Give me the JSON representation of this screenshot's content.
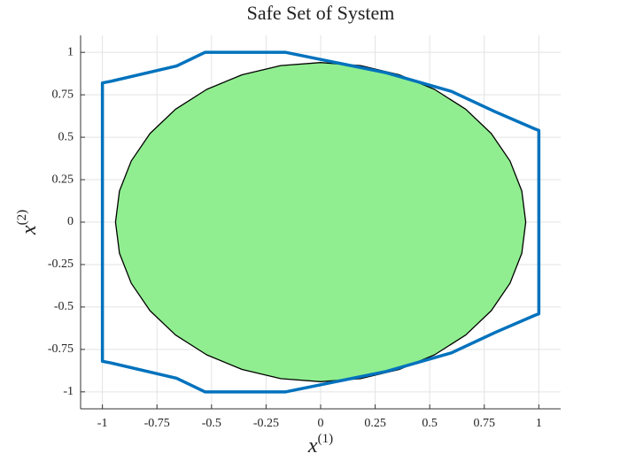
{
  "chart_data": {
    "type": "line",
    "title": "Safe Set of System",
    "xlabel": {
      "text": "x",
      "superscript": "(1)"
    },
    "ylabel": {
      "text": "x",
      "superscript": "(2)"
    },
    "xlim": [
      -1.1,
      1.1
    ],
    "ylim": [
      -1.1,
      1.1
    ],
    "xticks": [
      -1,
      -0.75,
      -0.5,
      -0.25,
      0,
      0.25,
      0.5,
      0.75,
      1
    ],
    "yticks": [
      -1,
      -0.75,
      -0.5,
      -0.25,
      0,
      0.25,
      0.5,
      0.75,
      1
    ],
    "grid": true,
    "series": [
      {
        "color": "#90ee90",
        "edge_color": "#000000",
        "filled": true,
        "x": [
          0.94,
          0.922,
          0.868,
          0.782,
          0.665,
          0.522,
          0.36,
          0.183,
          0,
          -0.183,
          -0.36,
          -0.522,
          -0.665,
          -0.782,
          -0.868,
          -0.922,
          -0.94,
          -0.922,
          -0.868,
          -0.782,
          -0.665,
          -0.522,
          -0.36,
          -0.183,
          0,
          0.183,
          0.36,
          0.522,
          0.665,
          0.782,
          0.868,
          0.922
        ],
        "values": [
          0,
          0.183,
          0.36,
          0.522,
          0.665,
          0.782,
          0.868,
          0.922,
          0.94,
          0.922,
          0.868,
          0.782,
          0.665,
          0.522,
          0.36,
          0.183,
          0,
          -0.183,
          -0.36,
          -0.522,
          -0.665,
          -0.782,
          -0.868,
          -0.922,
          -0.94,
          -0.922,
          -0.868,
          -0.782,
          -0.665,
          -0.522,
          -0.36,
          -0.183
        ]
      },
      {
        "color": "#0072bd",
        "filled": false,
        "x": [
          -1,
          -0.96,
          -0.66,
          -0.53,
          -0.16,
          0.3,
          0.6,
          0.8,
          0.98,
          1,
          1,
          0.98,
          0.8,
          0.6,
          0.3,
          -0.16,
          -0.53,
          -0.66,
          -0.96,
          -1
        ],
        "values": [
          0.82,
          0.83,
          0.92,
          1,
          1,
          0.88,
          0.77,
          0.65,
          0.55,
          0.54,
          -0.54,
          -0.55,
          -0.65,
          -0.77,
          -0.88,
          -1,
          -1,
          -0.92,
          -0.83,
          -0.82
        ]
      }
    ]
  }
}
